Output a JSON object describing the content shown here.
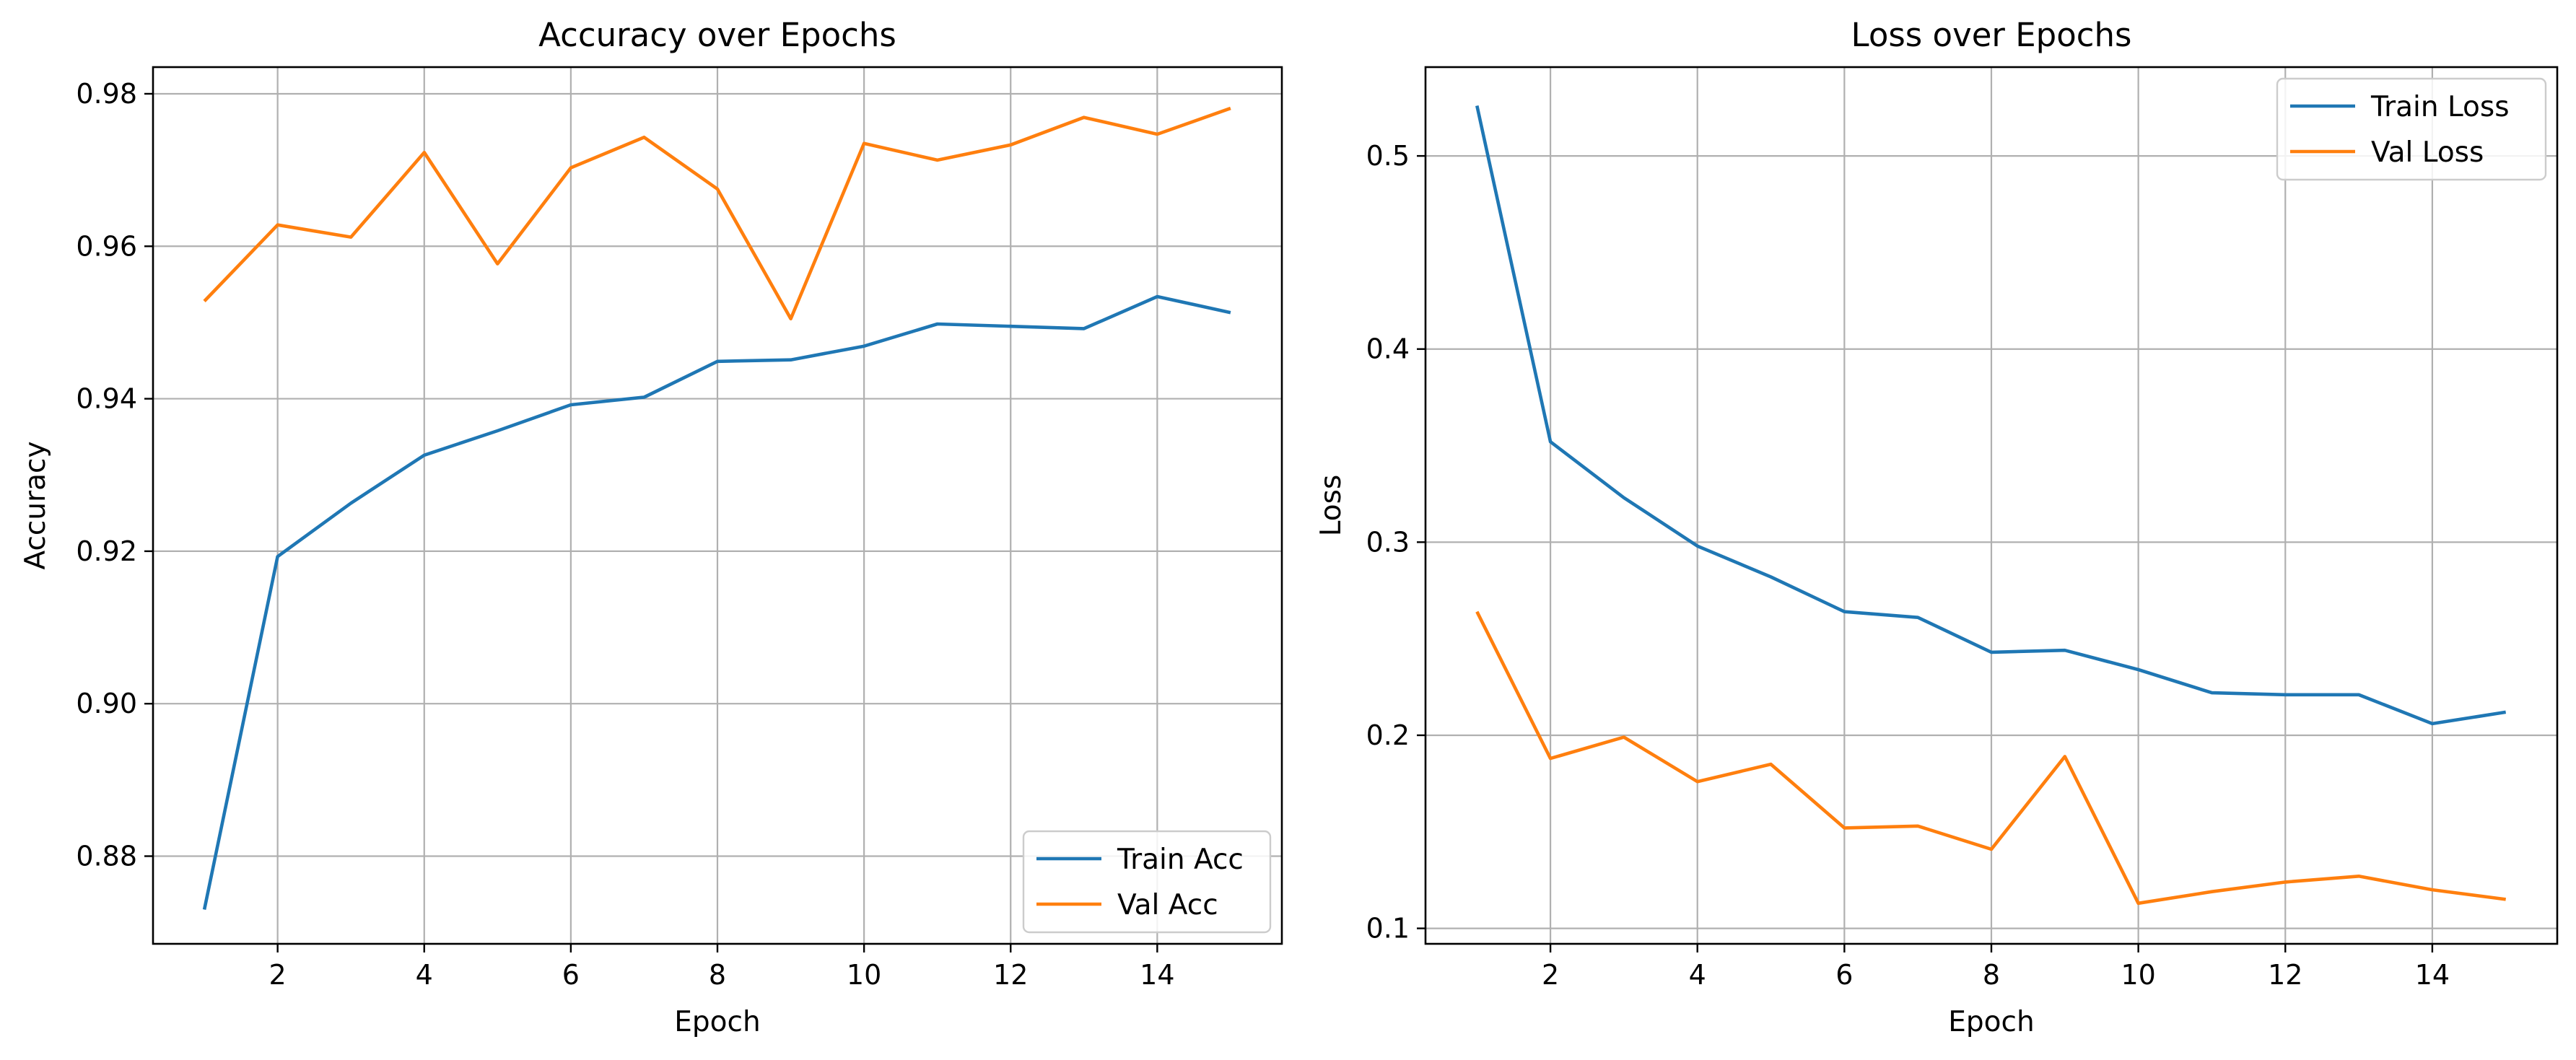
{
  "chart_data": [
    {
      "type": "line",
      "title": "Accuracy over Epochs",
      "xlabel": "Epoch",
      "ylabel": "Accuracy",
      "x": [
        1,
        2,
        3,
        4,
        5,
        6,
        7,
        8,
        9,
        10,
        11,
        12,
        13,
        14,
        15
      ],
      "xlim": [
        0.3,
        15.7
      ],
      "ylim": [
        0.8685,
        0.9835
      ],
      "xticks": [
        2,
        4,
        6,
        8,
        10,
        12,
        14
      ],
      "yticks": [
        0.88,
        0.9,
        0.92,
        0.94,
        0.96,
        0.98
      ],
      "ytick_labels": [
        "0.88",
        "0.90",
        "0.92",
        "0.94",
        "0.96",
        "0.98"
      ],
      "grid": true,
      "legend_position": "lower-right",
      "series": [
        {
          "name": "Train Acc",
          "color": "#1f77b4",
          "values": [
            0.873,
            0.9193,
            0.9263,
            0.9326,
            0.9358,
            0.9392,
            0.9402,
            0.9449,
            0.9451,
            0.9469,
            0.9498,
            0.9495,
            0.9492,
            0.9534,
            0.9513
          ]
        },
        {
          "name": "Val Acc",
          "color": "#ff7f0e",
          "values": [
            0.9528,
            0.9628,
            0.9612,
            0.9723,
            0.9577,
            0.9703,
            0.9743,
            0.9675,
            0.9505,
            0.9735,
            0.9713,
            0.9733,
            0.9769,
            0.9747,
            0.9781
          ]
        }
      ]
    },
    {
      "type": "line",
      "title": "Loss over Epochs",
      "xlabel": "Epoch",
      "ylabel": "Loss",
      "x": [
        1,
        2,
        3,
        4,
        5,
        6,
        7,
        8,
        9,
        10,
        11,
        12,
        13,
        14,
        15
      ],
      "xlim": [
        0.3,
        15.7
      ],
      "ylim": [
        0.092,
        0.546
      ],
      "xticks": [
        2,
        4,
        6,
        8,
        10,
        12,
        14
      ],
      "yticks": [
        0.1,
        0.2,
        0.3,
        0.4,
        0.5
      ],
      "ytick_labels": [
        "0.1",
        "0.2",
        "0.3",
        "0.4",
        "0.5"
      ],
      "grid": true,
      "legend_position": "upper-right",
      "series": [
        {
          "name": "Train Loss",
          "color": "#1f77b4",
          "values": [
            0.526,
            0.352,
            0.323,
            0.298,
            0.282,
            0.264,
            0.261,
            0.243,
            0.244,
            0.234,
            0.222,
            0.221,
            0.221,
            0.206,
            0.212
          ]
        },
        {
          "name": "Val Loss",
          "color": "#ff7f0e",
          "values": [
            0.264,
            0.188,
            0.199,
            0.176,
            0.185,
            0.152,
            0.153,
            0.141,
            0.189,
            0.113,
            0.119,
            0.124,
            0.127,
            0.12,
            0.115
          ]
        }
      ]
    }
  ]
}
